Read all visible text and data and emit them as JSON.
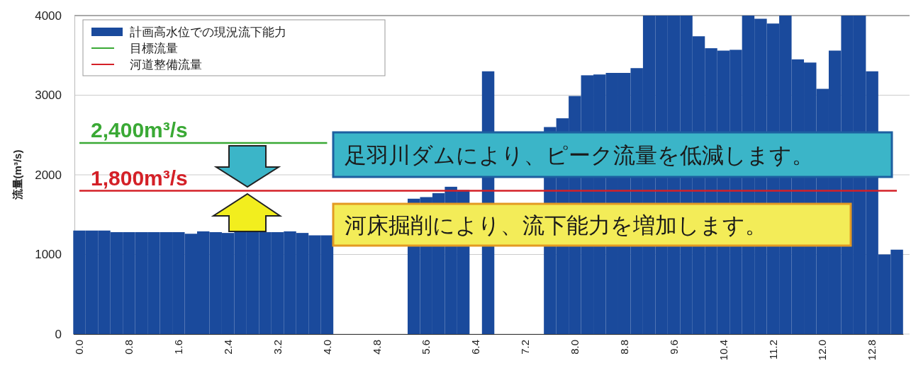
{
  "chart_data": {
    "type": "bar",
    "ylabel": "流量(m³/s)",
    "categories": [
      "0.0",
      null,
      null,
      null,
      "0.8",
      null,
      null,
      null,
      "1.6",
      null,
      null,
      null,
      "2.4",
      null,
      null,
      null,
      "3.2",
      null,
      null,
      null,
      "4.0",
      null,
      null,
      null,
      "4.8",
      null,
      null,
      null,
      "5.6",
      null,
      null,
      null,
      "6.4",
      null,
      null,
      null,
      "7.2",
      null,
      null,
      null,
      "8.0",
      null,
      null,
      null,
      "8.8",
      null,
      null,
      null,
      "9.6",
      null,
      null,
      null,
      "10.4",
      null,
      null,
      null,
      "11.2",
      null,
      null,
      null,
      "12.0",
      null,
      null,
      null,
      "12.8",
      null,
      null
    ],
    "series": [
      {
        "name": "計画高水位での現況流下能力",
        "color": "#1a4a9c",
        "values": [
          1300,
          1300,
          1300,
          1280,
          1280,
          1280,
          1280,
          1280,
          1280,
          1260,
          1290,
          1280,
          1270,
          1280,
          1280,
          1280,
          1280,
          1290,
          1270,
          1240,
          1240,
          null,
          null,
          null,
          null,
          null,
          null,
          1700,
          1720,
          1770,
          1850,
          1810,
          null,
          3300,
          null,
          null,
          null,
          null,
          2600,
          2710,
          2990,
          3250,
          3260,
          3280,
          3280,
          3340,
          4000,
          4000,
          4000,
          4000,
          3740,
          3590,
          3560,
          3570,
          4000,
          3960,
          3900,
          4000,
          3450,
          3410,
          3080,
          3560,
          4000,
          4000,
          3300,
          1000,
          1060
        ]
      },
      {
        "name": "目標流量",
        "type": "line",
        "color": "#3aa935",
        "values": [
          2400,
          2400,
          2400,
          2400,
          2400,
          2400,
          2400,
          2400,
          2400,
          2400,
          2400,
          2400,
          2400,
          2400,
          2400,
          2400,
          2400,
          2400,
          2400,
          2400,
          2400,
          null,
          null,
          null,
          null,
          null,
          null,
          null,
          null,
          null,
          null,
          null,
          null,
          null,
          null,
          null,
          null,
          null,
          null,
          null,
          null,
          null,
          null,
          null,
          null,
          null,
          null,
          null,
          null,
          null,
          null,
          null,
          null,
          null,
          null,
          null,
          null,
          null,
          null,
          null,
          null,
          null,
          null,
          null,
          null,
          null,
          null
        ]
      },
      {
        "name": "河道整備流量",
        "type": "line",
        "color": "#d42027",
        "values": [
          1800,
          1800,
          1800,
          1800,
          1800,
          1800,
          1800,
          1800,
          1800,
          1800,
          1800,
          1800,
          1800,
          1800,
          1800,
          1800,
          1800,
          1800,
          1800,
          1800,
          1800,
          1800,
          1800,
          1800,
          1800,
          1800,
          1800,
          1800,
          1800,
          1800,
          1800,
          1800,
          1800,
          1800,
          1800,
          1800,
          1800,
          1800,
          1800,
          1800,
          1800,
          1800,
          1800,
          1800,
          1800,
          1800,
          1800,
          1800,
          1800,
          1800,
          1800,
          1800,
          1800,
          1800,
          1800,
          1800,
          1800,
          1800,
          1800,
          1800,
          1800,
          1800,
          1800,
          1800,
          1800,
          1800,
          1800
        ]
      }
    ],
    "ylim": [
      0,
      4000
    ],
    "yticks": [
      0,
      1000,
      2000,
      3000,
      4000
    ],
    "grid": "y",
    "legend": "top left",
    "annotations": [
      {
        "text": "2,400m³/s",
        "y": 2400
      },
      {
        "text": "1,800m³/s",
        "y": 1800
      },
      "足羽川ダムにより、ピーク流量を低減します。",
      "河床掘削により、流下能力を増加します。"
    ]
  }
}
